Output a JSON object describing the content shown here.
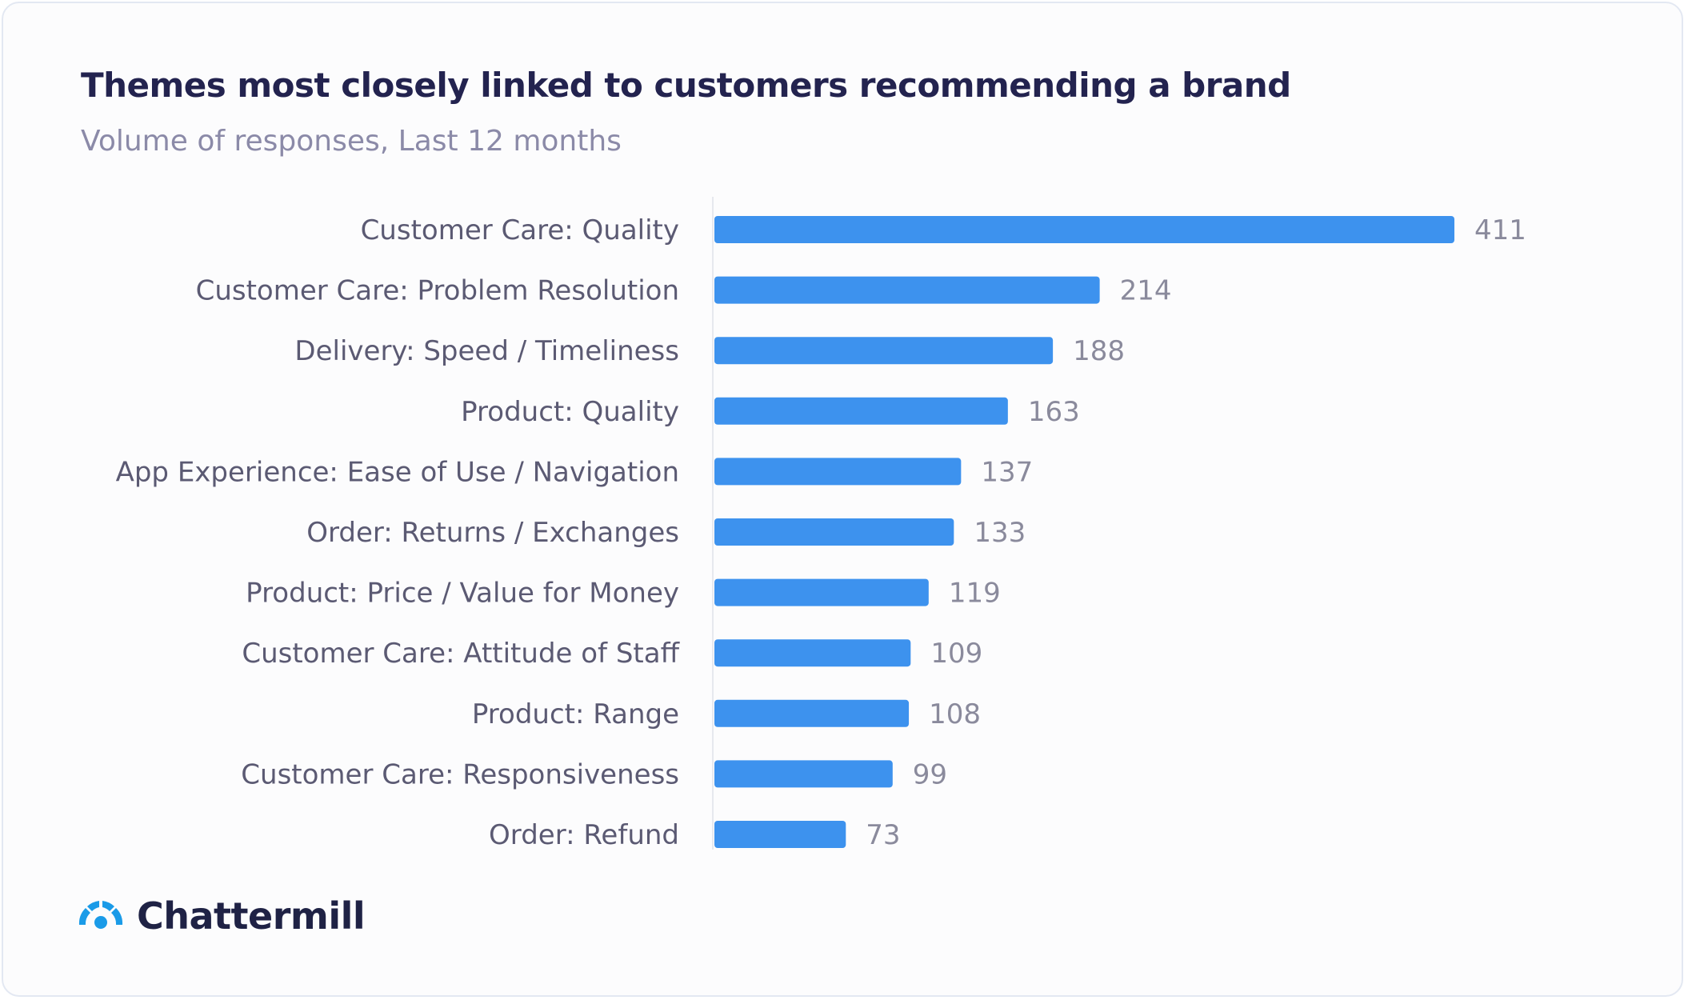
{
  "header": {
    "title": "Themes most closely linked to customers recommending a brand",
    "subtitle": "Volume of responses, Last 12 months"
  },
  "brand": {
    "name": "Chattermill",
    "icon": "chattermill-logo-icon"
  },
  "colors": {
    "bar": "#3d92ee",
    "label": "#5b5a73",
    "value": "#8a8a9c",
    "axis": "#e6e8ee",
    "title": "#23234f",
    "subtitle": "#8b8aa8",
    "logo": "#1a9be8"
  },
  "chart_data": {
    "type": "bar",
    "orientation": "horizontal",
    "title": "Themes most closely linked to customers recommending a brand",
    "subtitle": "Volume of responses, Last 12 months",
    "categories": [
      "Customer Care: Quality",
      "Customer Care: Problem Resolution",
      "Delivery: Speed / Timeliness",
      "Product: Quality",
      "App Experience: Ease of Use / Navigation",
      "Order: Returns / Exchanges",
      "Product: Price / Value for Money",
      "Customer Care: Attitude of Staff",
      "Product: Range",
      "Customer Care: Responsiveness",
      "Order: Refund"
    ],
    "values": [
      411,
      214,
      188,
      163,
      137,
      133,
      119,
      109,
      108,
      99,
      73
    ],
    "xlim": [
      0,
      411
    ],
    "grid": false,
    "legend": "none"
  }
}
